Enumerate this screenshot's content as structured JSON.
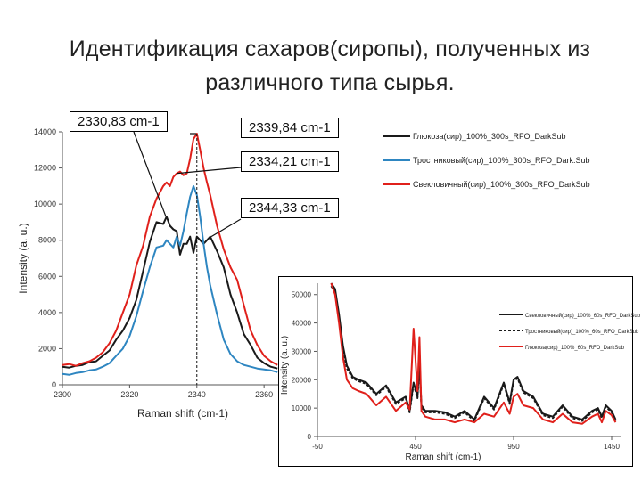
{
  "title_line1": "Идентификация сахаров(сиропы), полученных из",
  "title_line2": "различного типа сырья.",
  "callouts": [
    "2330,83 cm-1",
    "2339,84 cm-1",
    "2334,21 cm-1",
    "2344,33 cm-1"
  ],
  "colors": {
    "black": "#1a1a1a",
    "blue": "#2e86c1",
    "red": "#e0201b",
    "axis": "#555555"
  },
  "chart_data": [
    {
      "type": "line",
      "xlabel": "Raman shift (cm-1)",
      "ylabel": "Intensity (a. u.)",
      "xlim": [
        2300,
        2365
      ],
      "ylim": [
        0,
        14000
      ],
      "xticks": [
        2300,
        2320,
        2340,
        2360
      ],
      "yticks": [
        0,
        2000,
        4000,
        6000,
        8000,
        10000,
        12000,
        14000
      ],
      "legend_position": "top-right",
      "series": [
        {
          "name": "Глюкоза(сир)_100%_300s_RFO_DarkSub",
          "color": "black",
          "x": [
            2300,
            2302,
            2304,
            2306,
            2308,
            2310,
            2312,
            2314,
            2316,
            2318,
            2320,
            2322,
            2324,
            2326,
            2328,
            2330,
            2331,
            2332,
            2333,
            2334,
            2335,
            2336,
            2337,
            2338,
            2339,
            2340,
            2341,
            2342,
            2343,
            2344,
            2346,
            2348,
            2350,
            2352,
            2354,
            2356,
            2358,
            2360,
            2362,
            2364
          ],
          "y": [
            1000,
            950,
            1050,
            1100,
            1250,
            1300,
            1600,
            1900,
            2500,
            3000,
            3700,
            4700,
            6300,
            7900,
            9000,
            8900,
            9300,
            8800,
            8600,
            8500,
            7200,
            7800,
            7800,
            8200,
            7300,
            8200,
            8000,
            7800,
            8000,
            8200,
            7400,
            6500,
            5000,
            4000,
            2800,
            2200,
            1500,
            1200,
            1000,
            900
          ]
        },
        {
          "name": "Тростниковый(сир)_100%_300s_RFO_Dark.Sub",
          "color": "blue",
          "x": [
            2300,
            2302,
            2304,
            2306,
            2308,
            2310,
            2312,
            2314,
            2316,
            2318,
            2320,
            2322,
            2324,
            2326,
            2328,
            2330,
            2331,
            2332,
            2333,
            2334,
            2335,
            2336,
            2337,
            2338,
            2339,
            2340,
            2341,
            2342,
            2343,
            2344,
            2346,
            2348,
            2350,
            2352,
            2354,
            2356,
            2358,
            2360,
            2362,
            2364
          ],
          "y": [
            600,
            550,
            650,
            700,
            800,
            850,
            1000,
            1200,
            1600,
            2000,
            2700,
            3800,
            5200,
            6500,
            7600,
            7700,
            8000,
            7800,
            7600,
            8200,
            7700,
            8500,
            9500,
            10400,
            11000,
            10500,
            9300,
            7800,
            6500,
            5500,
            3900,
            2500,
            1700,
            1300,
            1100,
            1000,
            900,
            850,
            800,
            700
          ]
        },
        {
          "name": "Свекловичный(сир)_100%_300s_RFO_DarkSub",
          "color": "red",
          "x": [
            2300,
            2302,
            2304,
            2306,
            2308,
            2310,
            2312,
            2314,
            2316,
            2318,
            2320,
            2322,
            2324,
            2326,
            2328,
            2330,
            2331,
            2332,
            2333,
            2334,
            2335,
            2336,
            2337,
            2338,
            2339,
            2340,
            2341,
            2342,
            2343,
            2344,
            2346,
            2348,
            2350,
            2352,
            2354,
            2356,
            2358,
            2360,
            2362,
            2364
          ],
          "y": [
            1100,
            1150,
            1050,
            1200,
            1300,
            1500,
            1800,
            2300,
            3000,
            4000,
            5000,
            6600,
            7700,
            9300,
            10300,
            11000,
            11200,
            11000,
            11500,
            11700,
            11800,
            11600,
            11700,
            12500,
            13600,
            13900,
            13000,
            12000,
            11200,
            10500,
            8800,
            7500,
            6500,
            5800,
            4400,
            3000,
            2200,
            1600,
            1300,
            1100
          ]
        }
      ]
    },
    {
      "type": "line",
      "xlabel": "Raman shift (cm-1)",
      "ylabel": "Intensity (a. u.)",
      "xlim": [
        -50,
        1500
      ],
      "ylim": [
        0,
        54000
      ],
      "xticks": [
        -50,
        450,
        950,
        1450
      ],
      "yticks": [
        0,
        10000,
        20000,
        30000,
        40000,
        50000
      ],
      "legend_position": "top-right",
      "series": [
        {
          "name": "Свекловичный(сир)_100%_60s_RFO_DarkSub",
          "color": "black",
          "x": [
            20,
            40,
            60,
            80,
            100,
            130,
            160,
            200,
            250,
            300,
            350,
            400,
            420,
            440,
            460,
            470,
            480,
            500,
            550,
            600,
            650,
            700,
            750,
            800,
            850,
            900,
            930,
            950,
            970,
            1000,
            1050,
            1100,
            1150,
            1200,
            1250,
            1300,
            1350,
            1380,
            1400,
            1420,
            1450,
            1470
          ],
          "y": [
            54000,
            52000,
            43000,
            32000,
            25000,
            21000,
            20000,
            19000,
            15000,
            18000,
            12000,
            14000,
            9000,
            19000,
            14000,
            26000,
            11000,
            9000,
            9000,
            8500,
            7000,
            9000,
            6000,
            14000,
            10000,
            19000,
            12000,
            20000,
            21000,
            16000,
            14000,
            8000,
            7000,
            11000,
            7000,
            6000,
            9000,
            10000,
            7000,
            11000,
            9000,
            6000
          ]
        },
        {
          "name": "Тростниковый(сир)_100%_60s_RFO_DarkSub",
          "color": "black",
          "x": [
            20,
            40,
            60,
            80,
            100,
            130,
            160,
            200,
            250,
            300,
            350,
            400,
            420,
            440,
            460,
            470,
            480,
            500,
            550,
            600,
            650,
            700,
            750,
            800,
            850,
            900,
            930,
            950,
            970,
            1000,
            1050,
            1100,
            1150,
            1200,
            1250,
            1300,
            1350,
            1380,
            1400,
            1420,
            1450,
            1470
          ],
          "y": [
            53000,
            51000,
            42000,
            31000,
            24000,
            20500,
            19500,
            18500,
            14500,
            17500,
            11500,
            13500,
            8500,
            18500,
            13500,
            25000,
            10500,
            8500,
            8500,
            8000,
            6500,
            8500,
            5500,
            13500,
            9500,
            18500,
            11500,
            19500,
            20500,
            15500,
            13500,
            7500,
            6500,
            10500,
            6500,
            5500,
            8500,
            9500,
            6500,
            10500,
            8500,
            5500
          ]
        },
        {
          "name": "Глюкоза(сир)_100%_60s_RFO_DarkSub",
          "color": "red",
          "x": [
            20,
            40,
            60,
            80,
            100,
            130,
            160,
            200,
            250,
            300,
            350,
            400,
            420,
            440,
            460,
            470,
            480,
            500,
            550,
            600,
            650,
            700,
            750,
            800,
            850,
            900,
            930,
            950,
            970,
            1000,
            1050,
            1100,
            1150,
            1200,
            1250,
            1300,
            1350,
            1380,
            1400,
            1420,
            1450,
            1470
          ],
          "y": [
            54000,
            50000,
            40000,
            28000,
            20000,
            17000,
            16000,
            15000,
            11000,
            14000,
            9000,
            12000,
            9500,
            38000,
            16000,
            35000,
            9000,
            7000,
            6000,
            6000,
            5000,
            6000,
            5000,
            8000,
            7000,
            12000,
            8000,
            14000,
            15000,
            11000,
            10000,
            6000,
            5000,
            8000,
            5000,
            4500,
            7000,
            8000,
            5000,
            9000,
            7500,
            5000
          ]
        }
      ]
    }
  ]
}
